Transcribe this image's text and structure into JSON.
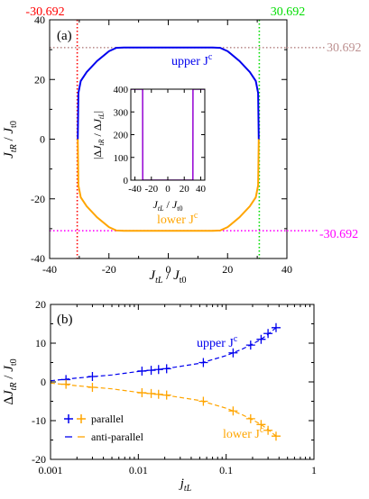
{
  "colors": {
    "upper": "#0000ee",
    "lower": "#ffa500",
    "v_left": "#ff0000",
    "v_right": "#00dd00",
    "h_top": "#bc8f8f",
    "h_bottom": "#ff00ff",
    "inset_line": "#9400d3"
  },
  "chart_data": [
    {
      "type": "line",
      "panel_label": "(a)",
      "xlabel": "J_tL / J_t0",
      "ylabel": "J_tR / J_t0",
      "xlim": [
        -40,
        40
      ],
      "ylim": [
        -40,
        40
      ],
      "xticks": [
        "-40",
        "-20",
        "0",
        "20",
        "40"
      ],
      "yticks": [
        "-40",
        "-20",
        "0",
        "20",
        "40"
      ],
      "annotations": {
        "left_value": "-30.692",
        "right_value": "30.692",
        "top_value": "30.692",
        "bottom_value": "-30.692",
        "upper_label": "upper J",
        "lower_label": "lower J",
        "superscript": "c"
      },
      "reference_lines": {
        "vertical_x": [
          -30.692,
          30.692
        ],
        "horizontal_y": [
          30.692,
          -30.692
        ]
      },
      "series": [
        {
          "name": "upper J^c",
          "x": [
            -30.5,
            -30.3,
            -29.5,
            -27.5,
            -24.0,
            -20.0,
            -17.5,
            -15,
            -10,
            0,
            10,
            15,
            17.5,
            20.0,
            24.0,
            27.5,
            29.5,
            30.3,
            30.5
          ],
          "y": [
            0,
            15.5,
            19.5,
            22.5,
            26.2,
            29.5,
            30.6,
            30.69,
            30.69,
            30.69,
            30.69,
            30.69,
            30.6,
            29.5,
            26.2,
            22.5,
            19.5,
            15.5,
            0
          ]
        },
        {
          "name": "lower J^c",
          "x": [
            -30.5,
            -30.3,
            -29.5,
            -27.5,
            -24.0,
            -20.0,
            -17.5,
            -15,
            -10,
            0,
            10,
            15,
            17.5,
            20.0,
            24.0,
            27.5,
            29.5,
            30.3,
            30.5
          ],
          "y": [
            0,
            -15.5,
            -19.5,
            -22.5,
            -26.2,
            -29.5,
            -30.6,
            -30.69,
            -30.69,
            -30.69,
            -30.69,
            -30.69,
            -30.6,
            -29.5,
            -26.2,
            -22.5,
            -19.5,
            -15.5,
            0
          ]
        }
      ],
      "inset": {
        "xlabel": "J_tL / J_t0",
        "ylabel": "|ΔJ_tR / ΔJ_tL|",
        "xlim": [
          -45,
          45
        ],
        "ylim": [
          0,
          400
        ],
        "xticks": [
          "-40",
          "-20",
          "0",
          "20",
          "40"
        ],
        "yticks": [
          "0",
          "100",
          "200",
          "300",
          "400"
        ],
        "x": [
          -45,
          -30.8,
          -30.6,
          -30.5,
          0,
          30.5,
          30.6,
          30.8,
          45
        ],
        "y": [
          400,
          400,
          400,
          0,
          0,
          0,
          400,
          400,
          400
        ]
      }
    },
    {
      "type": "line",
      "panel_label": "(b)",
      "xlabel": "j_tL",
      "ylabel": "ΔJ_tR / J_t0",
      "xscale": "log",
      "xlim": [
        0.001,
        1
      ],
      "ylim": [
        -20,
        20
      ],
      "xticks": [
        "0.001",
        "0.01",
        "0.1",
        "1"
      ],
      "yticks": [
        "-20",
        "-10",
        "0",
        "10",
        "20"
      ],
      "annotations": {
        "upper_label": "upper J",
        "lower_label": "lower J",
        "superscript": "c"
      },
      "legend": {
        "placement": "bottom-left",
        "entries": [
          "parallel",
          "anti-parallel"
        ]
      },
      "series": [
        {
          "name": "upper parallel",
          "x": [
            0.0015,
            0.003,
            0.011,
            0.014,
            0.017,
            0.021,
            0.055,
            0.12,
            0.19,
            0.25,
            0.3,
            0.37
          ],
          "y": [
            0.6,
            1.4,
            2.8,
            3.0,
            3.2,
            3.4,
            5.0,
            7.5,
            9.5,
            11.0,
            12.5,
            14.0
          ]
        },
        {
          "name": "lower parallel",
          "x": [
            0.0015,
            0.003,
            0.011,
            0.014,
            0.017,
            0.021,
            0.055,
            0.12,
            0.19,
            0.25,
            0.3,
            0.37
          ],
          "y": [
            -0.6,
            -1.4,
            -2.8,
            -3.0,
            -3.2,
            -3.4,
            -5.0,
            -7.5,
            -9.5,
            -11.0,
            -12.5,
            -14.0
          ]
        },
        {
          "name": "upper anti-parallel",
          "x": [
            0.001,
            0.002,
            0.005,
            0.01,
            0.02,
            0.05,
            0.1,
            0.15,
            0.2,
            0.25,
            0.3,
            0.37
          ],
          "y": [
            0.3,
            1.0,
            1.8,
            2.7,
            3.4,
            4.8,
            6.8,
            8.4,
            9.8,
            11.0,
            12.3,
            14.0
          ]
        },
        {
          "name": "lower anti-parallel",
          "x": [
            0.001,
            0.002,
            0.005,
            0.01,
            0.02,
            0.05,
            0.1,
            0.15,
            0.2,
            0.25,
            0.3,
            0.37
          ],
          "y": [
            -0.3,
            -1.0,
            -1.8,
            -2.7,
            -3.4,
            -4.8,
            -6.8,
            -8.4,
            -9.8,
            -11.0,
            -12.3,
            -14.0
          ]
        }
      ]
    }
  ]
}
